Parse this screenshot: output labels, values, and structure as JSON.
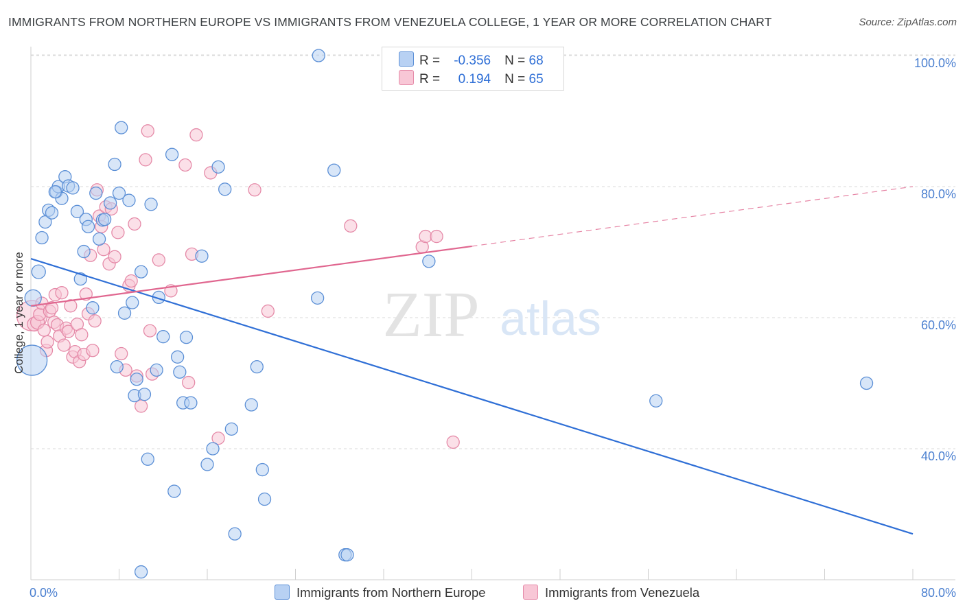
{
  "header": {
    "title": "IMMIGRANTS FROM NORTHERN EUROPE VS IMMIGRANTS FROM VENEZUELA COLLEGE, 1 YEAR OR MORE CORRELATION CHART",
    "source": "Source: ZipAtlas.com"
  },
  "legend": {
    "row1": {
      "r_label": "R =",
      "r_value": "-0.356",
      "n_label": "N =",
      "n_value": "68"
    },
    "row2": {
      "r_label": "R =",
      "r_value": "0.194",
      "n_label": "N =",
      "n_value": "65"
    }
  },
  "bottom_legend": {
    "series1": "Immigrants from Northern Europe",
    "series2": "Immigrants from Venezuela"
  },
  "colors": {
    "blue_fill": "#b8d1f3",
    "blue_stroke": "#5b8fd6",
    "blue_line": "#2f6fd6",
    "pink_fill": "#f8c7d6",
    "pink_stroke": "#e58aa8",
    "pink_line": "#e0668f",
    "grid": "#dadada"
  },
  "watermark": {
    "zip": "ZIP",
    "atlas": "atlas"
  },
  "chart_data": {
    "type": "scatter",
    "title": "IMMIGRANTS FROM NORTHERN EUROPE VS IMMIGRANTS FROM VENEZUELA COLLEGE, 1 YEAR OR MORE CORRELATION CHART",
    "xlabel": "",
    "ylabel": "College, 1 year or more",
    "xlim": [
      0,
      80
    ],
    "ylim": [
      20,
      104
    ],
    "x_ticks": [
      "0.0%",
      "80.0%"
    ],
    "y_ticks": [
      {
        "value": 40,
        "label": "40.0%"
      },
      {
        "value": 60,
        "label": "60.0%"
      },
      {
        "value": 80,
        "label": "80.0%"
      },
      {
        "value": 100,
        "label": "100.0%"
      }
    ],
    "series": [
      {
        "name": "Immigrants from Northern Europe",
        "color": "blue",
        "r": -0.356,
        "n": 68,
        "trend": {
          "x0": 0,
          "y0": 69.0,
          "x1": 80,
          "y1": 27.0,
          "dashed_from": null
        },
        "points": [
          [
            0.1,
            53.5,
            22
          ],
          [
            0.2,
            63.0,
            12
          ],
          [
            0.7,
            67.0,
            10
          ],
          [
            1.0,
            72.2,
            9
          ],
          [
            1.3,
            74.6,
            9
          ],
          [
            1.6,
            76.4,
            9
          ],
          [
            1.9,
            76.0,
            9
          ],
          [
            2.3,
            79.2,
            9
          ],
          [
            2.5,
            80.0,
            9
          ],
          [
            2.8,
            78.2,
            9
          ],
          [
            3.1,
            81.5,
            9
          ],
          [
            3.4,
            80.1,
            9
          ],
          [
            3.8,
            79.8,
            9
          ],
          [
            4.2,
            76.2,
            9
          ],
          [
            4.5,
            65.9,
            9
          ],
          [
            4.8,
            70.1,
            9
          ],
          [
            5.0,
            75.0,
            9
          ],
          [
            5.2,
            73.9,
            9
          ],
          [
            5.6,
            61.5,
            9
          ],
          [
            5.9,
            79.0,
            9
          ],
          [
            6.2,
            72.0,
            9
          ],
          [
            6.5,
            74.9,
            9
          ],
          [
            6.7,
            75.0,
            9
          ],
          [
            7.2,
            77.5,
            9
          ],
          [
            7.6,
            83.4,
            9
          ],
          [
            7.8,
            52.5,
            9
          ],
          [
            8.0,
            79.0,
            9
          ],
          [
            8.2,
            89.0,
            9
          ],
          [
            8.5,
            60.7,
            9
          ],
          [
            8.9,
            77.9,
            9
          ],
          [
            9.2,
            62.3,
            9
          ],
          [
            9.4,
            48.1,
            9
          ],
          [
            9.6,
            50.6,
            9
          ],
          [
            10.0,
            67.0,
            9
          ],
          [
            10.3,
            48.3,
            9
          ],
          [
            10.6,
            38.4,
            9
          ],
          [
            10.9,
            77.3,
            9
          ],
          [
            11.4,
            52.0,
            9
          ],
          [
            11.6,
            63.1,
            9
          ],
          [
            12.0,
            57.1,
            9
          ],
          [
            12.8,
            84.9,
            9
          ],
          [
            13.0,
            33.5,
            9
          ],
          [
            13.3,
            54.0,
            9
          ],
          [
            13.5,
            51.7,
            9
          ],
          [
            13.8,
            47.0,
            9
          ],
          [
            14.1,
            57.0,
            9
          ],
          [
            14.5,
            47.0,
            9
          ],
          [
            15.5,
            69.4,
            9
          ],
          [
            16.0,
            37.6,
            9
          ],
          [
            16.5,
            40.0,
            9
          ],
          [
            17.0,
            83.0,
            9
          ],
          [
            17.6,
            79.6,
            9
          ],
          [
            18.2,
            43.0,
            9
          ],
          [
            18.5,
            27.0,
            9
          ],
          [
            20.0,
            46.7,
            9
          ],
          [
            20.5,
            52.5,
            9
          ],
          [
            21.0,
            36.8,
            9
          ],
          [
            21.2,
            32.3,
            9
          ],
          [
            26.0,
            63.0,
            9
          ],
          [
            26.1,
            100.0,
            9
          ],
          [
            27.5,
            82.5,
            9
          ],
          [
            28.5,
            23.8,
            9
          ],
          [
            28.7,
            23.8,
            9
          ],
          [
            36.1,
            68.6,
            9
          ],
          [
            56.7,
            47.3,
            9
          ],
          [
            75.8,
            50.0,
            9
          ],
          [
            10.0,
            21.2,
            9
          ],
          [
            2.2,
            79.2,
            9
          ]
        ]
      },
      {
        "name": "Immigrants from Venezuela",
        "color": "pink",
        "r": 0.194,
        "n": 65,
        "trend": {
          "x0": 0,
          "y0": 61.8,
          "x1": 80,
          "y1": 80.0,
          "dashed_from": 40
        },
        "points": [
          [
            0.1,
            60.3,
            22
          ],
          [
            0.3,
            59.0,
            10
          ],
          [
            0.6,
            59.3,
            10
          ],
          [
            0.8,
            60.5,
            9
          ],
          [
            1.0,
            62.2,
            9
          ],
          [
            1.2,
            58.1,
            9
          ],
          [
            1.4,
            55.0,
            9
          ],
          [
            1.5,
            56.3,
            9
          ],
          [
            1.7,
            61.0,
            9
          ],
          [
            1.9,
            61.5,
            9
          ],
          [
            2.1,
            59.3,
            9
          ],
          [
            2.2,
            63.5,
            9
          ],
          [
            2.4,
            58.9,
            9
          ],
          [
            2.6,
            57.2,
            9
          ],
          [
            2.8,
            63.8,
            9
          ],
          [
            3.0,
            55.8,
            9
          ],
          [
            3.2,
            58.4,
            9
          ],
          [
            3.4,
            57.9,
            9
          ],
          [
            3.6,
            61.8,
            9
          ],
          [
            3.8,
            54.0,
            9
          ],
          [
            4.0,
            54.8,
            9
          ],
          [
            4.2,
            59.0,
            9
          ],
          [
            4.4,
            53.3,
            9
          ],
          [
            4.6,
            57.4,
            9
          ],
          [
            4.8,
            54.4,
            9
          ],
          [
            5.0,
            63.6,
            9
          ],
          [
            5.2,
            60.6,
            9
          ],
          [
            5.4,
            69.5,
            9
          ],
          [
            5.6,
            55.0,
            9
          ],
          [
            5.8,
            59.5,
            9
          ],
          [
            6.0,
            79.5,
            9
          ],
          [
            6.2,
            75.5,
            9
          ],
          [
            6.4,
            73.9,
            9
          ],
          [
            6.6,
            70.4,
            9
          ],
          [
            6.8,
            76.9,
            9
          ],
          [
            7.1,
            68.2,
            9
          ],
          [
            7.3,
            76.6,
            9
          ],
          [
            7.6,
            69.3,
            9
          ],
          [
            7.9,
            73.0,
            9
          ],
          [
            8.2,
            54.5,
            9
          ],
          [
            8.6,
            52.0,
            9
          ],
          [
            8.9,
            64.9,
            9
          ],
          [
            9.1,
            65.6,
            9
          ],
          [
            9.4,
            74.3,
            9
          ],
          [
            9.6,
            51.1,
            9
          ],
          [
            10.0,
            46.5,
            9
          ],
          [
            10.4,
            84.1,
            9
          ],
          [
            10.6,
            88.5,
            9
          ],
          [
            10.8,
            58.0,
            9
          ],
          [
            11.0,
            51.4,
            9
          ],
          [
            11.6,
            68.8,
            9
          ],
          [
            12.7,
            64.1,
            9
          ],
          [
            14.0,
            83.3,
            9
          ],
          [
            14.3,
            50.1,
            9
          ],
          [
            14.6,
            69.7,
            9
          ],
          [
            15.0,
            87.9,
            9
          ],
          [
            16.3,
            82.1,
            9
          ],
          [
            17.0,
            41.6,
            9
          ],
          [
            20.3,
            79.5,
            9
          ],
          [
            21.5,
            61.0,
            9
          ],
          [
            29.0,
            74.0,
            9
          ],
          [
            35.5,
            70.8,
            9
          ],
          [
            35.8,
            72.4,
            9
          ],
          [
            36.8,
            72.4,
            9
          ],
          [
            38.3,
            41.0,
            9
          ]
        ]
      }
    ]
  }
}
